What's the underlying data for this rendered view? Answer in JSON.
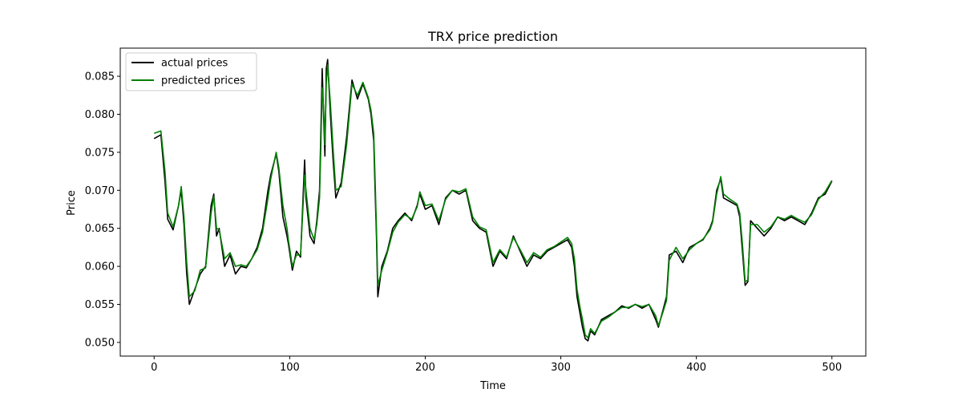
{
  "chart_data": {
    "type": "line",
    "title": "TRX price prediction",
    "xlabel": "Time",
    "ylabel": "Price",
    "xlim": [
      -25,
      525
    ],
    "ylim": [
      0.0482,
      0.0887
    ],
    "xticks": [
      0,
      100,
      200,
      300,
      400,
      500
    ],
    "yticks": [
      0.05,
      0.055,
      0.06,
      0.065,
      0.07,
      0.075,
      0.08,
      0.085
    ],
    "ytick_labels": [
      "0.050",
      "0.055",
      "0.060",
      "0.065",
      "0.070",
      "0.075",
      "0.080",
      "0.085"
    ],
    "grid": false,
    "legend_position": "top-left",
    "series": [
      {
        "name": "actual prices",
        "color": "#000000",
        "x": [
          0,
          5,
          8,
          10,
          14,
          18,
          20,
          22,
          24,
          26,
          30,
          34,
          38,
          42,
          44,
          46,
          48,
          52,
          56,
          60,
          64,
          68,
          72,
          76,
          80,
          84,
          86,
          90,
          92,
          95,
          98,
          99,
          102,
          105,
          108,
          111,
          112,
          115,
          118,
          120,
          122,
          123,
          124,
          125,
          126,
          127,
          128,
          130,
          132,
          134,
          138,
          142,
          146,
          150,
          154,
          158,
          160,
          162,
          163,
          164,
          165,
          168,
          172,
          176,
          180,
          185,
          190,
          194,
          196,
          200,
          205,
          210,
          215,
          220,
          225,
          230,
          235,
          240,
          245,
          250,
          255,
          260,
          265,
          270,
          275,
          280,
          285,
          290,
          295,
          300,
          305,
          308,
          310,
          312,
          314,
          316,
          318,
          320,
          322,
          325,
          330,
          335,
          340,
          345,
          350,
          355,
          360,
          365,
          370,
          372,
          375,
          378,
          380,
          385,
          390,
          395,
          400,
          405,
          410,
          412,
          415,
          418,
          420,
          425,
          430,
          432,
          434,
          436,
          438,
          440,
          445,
          450,
          455,
          460,
          465,
          470,
          475,
          480,
          485,
          490,
          495,
          500
        ],
        "y": [
          0.0768,
          0.0773,
          0.0712,
          0.0662,
          0.0648,
          0.068,
          0.07,
          0.0655,
          0.059,
          0.055,
          0.057,
          0.059,
          0.06,
          0.068,
          0.0695,
          0.064,
          0.065,
          0.06,
          0.0615,
          0.059,
          0.06,
          0.0598,
          0.061,
          0.0625,
          0.065,
          0.07,
          0.072,
          0.0748,
          0.0725,
          0.0665,
          0.064,
          0.063,
          0.0595,
          0.062,
          0.0612,
          0.074,
          0.069,
          0.064,
          0.063,
          0.066,
          0.07,
          0.078,
          0.086,
          0.08,
          0.0745,
          0.086,
          0.0872,
          0.08,
          0.074,
          0.069,
          0.071,
          0.077,
          0.0845,
          0.082,
          0.084,
          0.082,
          0.08,
          0.0765,
          0.07,
          0.064,
          0.056,
          0.06,
          0.062,
          0.065,
          0.066,
          0.067,
          0.066,
          0.068,
          0.0695,
          0.0675,
          0.068,
          0.0655,
          0.069,
          0.07,
          0.0695,
          0.07,
          0.066,
          0.065,
          0.0645,
          0.06,
          0.062,
          0.061,
          0.064,
          0.062,
          0.06,
          0.0615,
          0.061,
          0.062,
          0.0625,
          0.063,
          0.0635,
          0.0625,
          0.06,
          0.056,
          0.054,
          0.052,
          0.0505,
          0.0502,
          0.0515,
          0.051,
          0.053,
          0.0535,
          0.054,
          0.0548,
          0.0545,
          0.055,
          0.0545,
          0.055,
          0.053,
          0.052,
          0.054,
          0.056,
          0.0615,
          0.062,
          0.0605,
          0.0625,
          0.063,
          0.0635,
          0.065,
          0.066,
          0.07,
          0.0715,
          0.069,
          0.0685,
          0.068,
          0.0665,
          0.062,
          0.0575,
          0.058,
          0.066,
          0.065,
          0.064,
          0.065,
          0.0665,
          0.066,
          0.0665,
          0.066,
          0.0655,
          0.067,
          0.069,
          0.0695,
          0.0712
        ]
      },
      {
        "name": "predicted prices",
        "color": "#008000",
        "x": [
          0,
          5,
          8,
          10,
          14,
          18,
          20,
          22,
          24,
          26,
          30,
          34,
          38,
          42,
          44,
          46,
          48,
          52,
          56,
          60,
          64,
          68,
          72,
          76,
          80,
          84,
          86,
          90,
          92,
          95,
          98,
          99,
          102,
          105,
          108,
          111,
          112,
          115,
          118,
          120,
          122,
          123,
          124,
          125,
          126,
          127,
          128,
          130,
          132,
          134,
          138,
          142,
          146,
          150,
          154,
          158,
          160,
          162,
          163,
          164,
          165,
          168,
          172,
          176,
          180,
          185,
          190,
          194,
          196,
          200,
          205,
          210,
          215,
          220,
          225,
          230,
          235,
          240,
          245,
          250,
          255,
          260,
          265,
          270,
          275,
          280,
          285,
          290,
          295,
          300,
          305,
          308,
          310,
          312,
          314,
          316,
          318,
          320,
          322,
          325,
          330,
          335,
          340,
          345,
          350,
          355,
          360,
          365,
          370,
          372,
          375,
          378,
          380,
          385,
          390,
          395,
          400,
          405,
          410,
          412,
          415,
          418,
          420,
          425,
          430,
          432,
          434,
          436,
          438,
          440,
          445,
          450,
          455,
          460,
          465,
          470,
          475,
          480,
          485,
          490,
          495,
          500
        ],
        "y": [
          0.0775,
          0.0778,
          0.0725,
          0.067,
          0.0652,
          0.068,
          0.0705,
          0.0665,
          0.0605,
          0.056,
          0.0568,
          0.0595,
          0.0598,
          0.067,
          0.0692,
          0.065,
          0.0648,
          0.061,
          0.0618,
          0.06,
          0.0602,
          0.06,
          0.061,
          0.0622,
          0.0645,
          0.069,
          0.0715,
          0.075,
          0.073,
          0.068,
          0.065,
          0.0635,
          0.06,
          0.0615,
          0.0615,
          0.072,
          0.07,
          0.065,
          0.0635,
          0.0655,
          0.069,
          0.076,
          0.0835,
          0.081,
          0.076,
          0.084,
          0.0865,
          0.0815,
          0.0755,
          0.07,
          0.0705,
          0.076,
          0.084,
          0.0825,
          0.0842,
          0.0822,
          0.0805,
          0.0775,
          0.0715,
          0.065,
          0.0575,
          0.0595,
          0.0618,
          0.0645,
          0.0658,
          0.0668,
          0.0662,
          0.0678,
          0.0698,
          0.068,
          0.0682,
          0.066,
          0.0688,
          0.07,
          0.0698,
          0.0702,
          0.0665,
          0.0652,
          0.0648,
          0.0605,
          0.0622,
          0.0612,
          0.0638,
          0.0622,
          0.0605,
          0.0618,
          0.0612,
          0.0622,
          0.0626,
          0.0632,
          0.0638,
          0.063,
          0.061,
          0.057,
          0.0548,
          0.053,
          0.051,
          0.0506,
          0.0518,
          0.0512,
          0.0528,
          0.0533,
          0.054,
          0.0546,
          0.0546,
          0.055,
          0.0547,
          0.055,
          0.0535,
          0.0522,
          0.0538,
          0.0555,
          0.0608,
          0.0625,
          0.061,
          0.0622,
          0.063,
          0.0636,
          0.0648,
          0.0658,
          0.0695,
          0.0718,
          0.0695,
          0.0688,
          0.0682,
          0.067,
          0.063,
          0.058,
          0.0582,
          0.0655,
          0.0655,
          0.0645,
          0.0652,
          0.0665,
          0.0662,
          0.0667,
          0.0662,
          0.0658,
          0.0668,
          0.0688,
          0.0698,
          0.0713
        ]
      }
    ]
  }
}
